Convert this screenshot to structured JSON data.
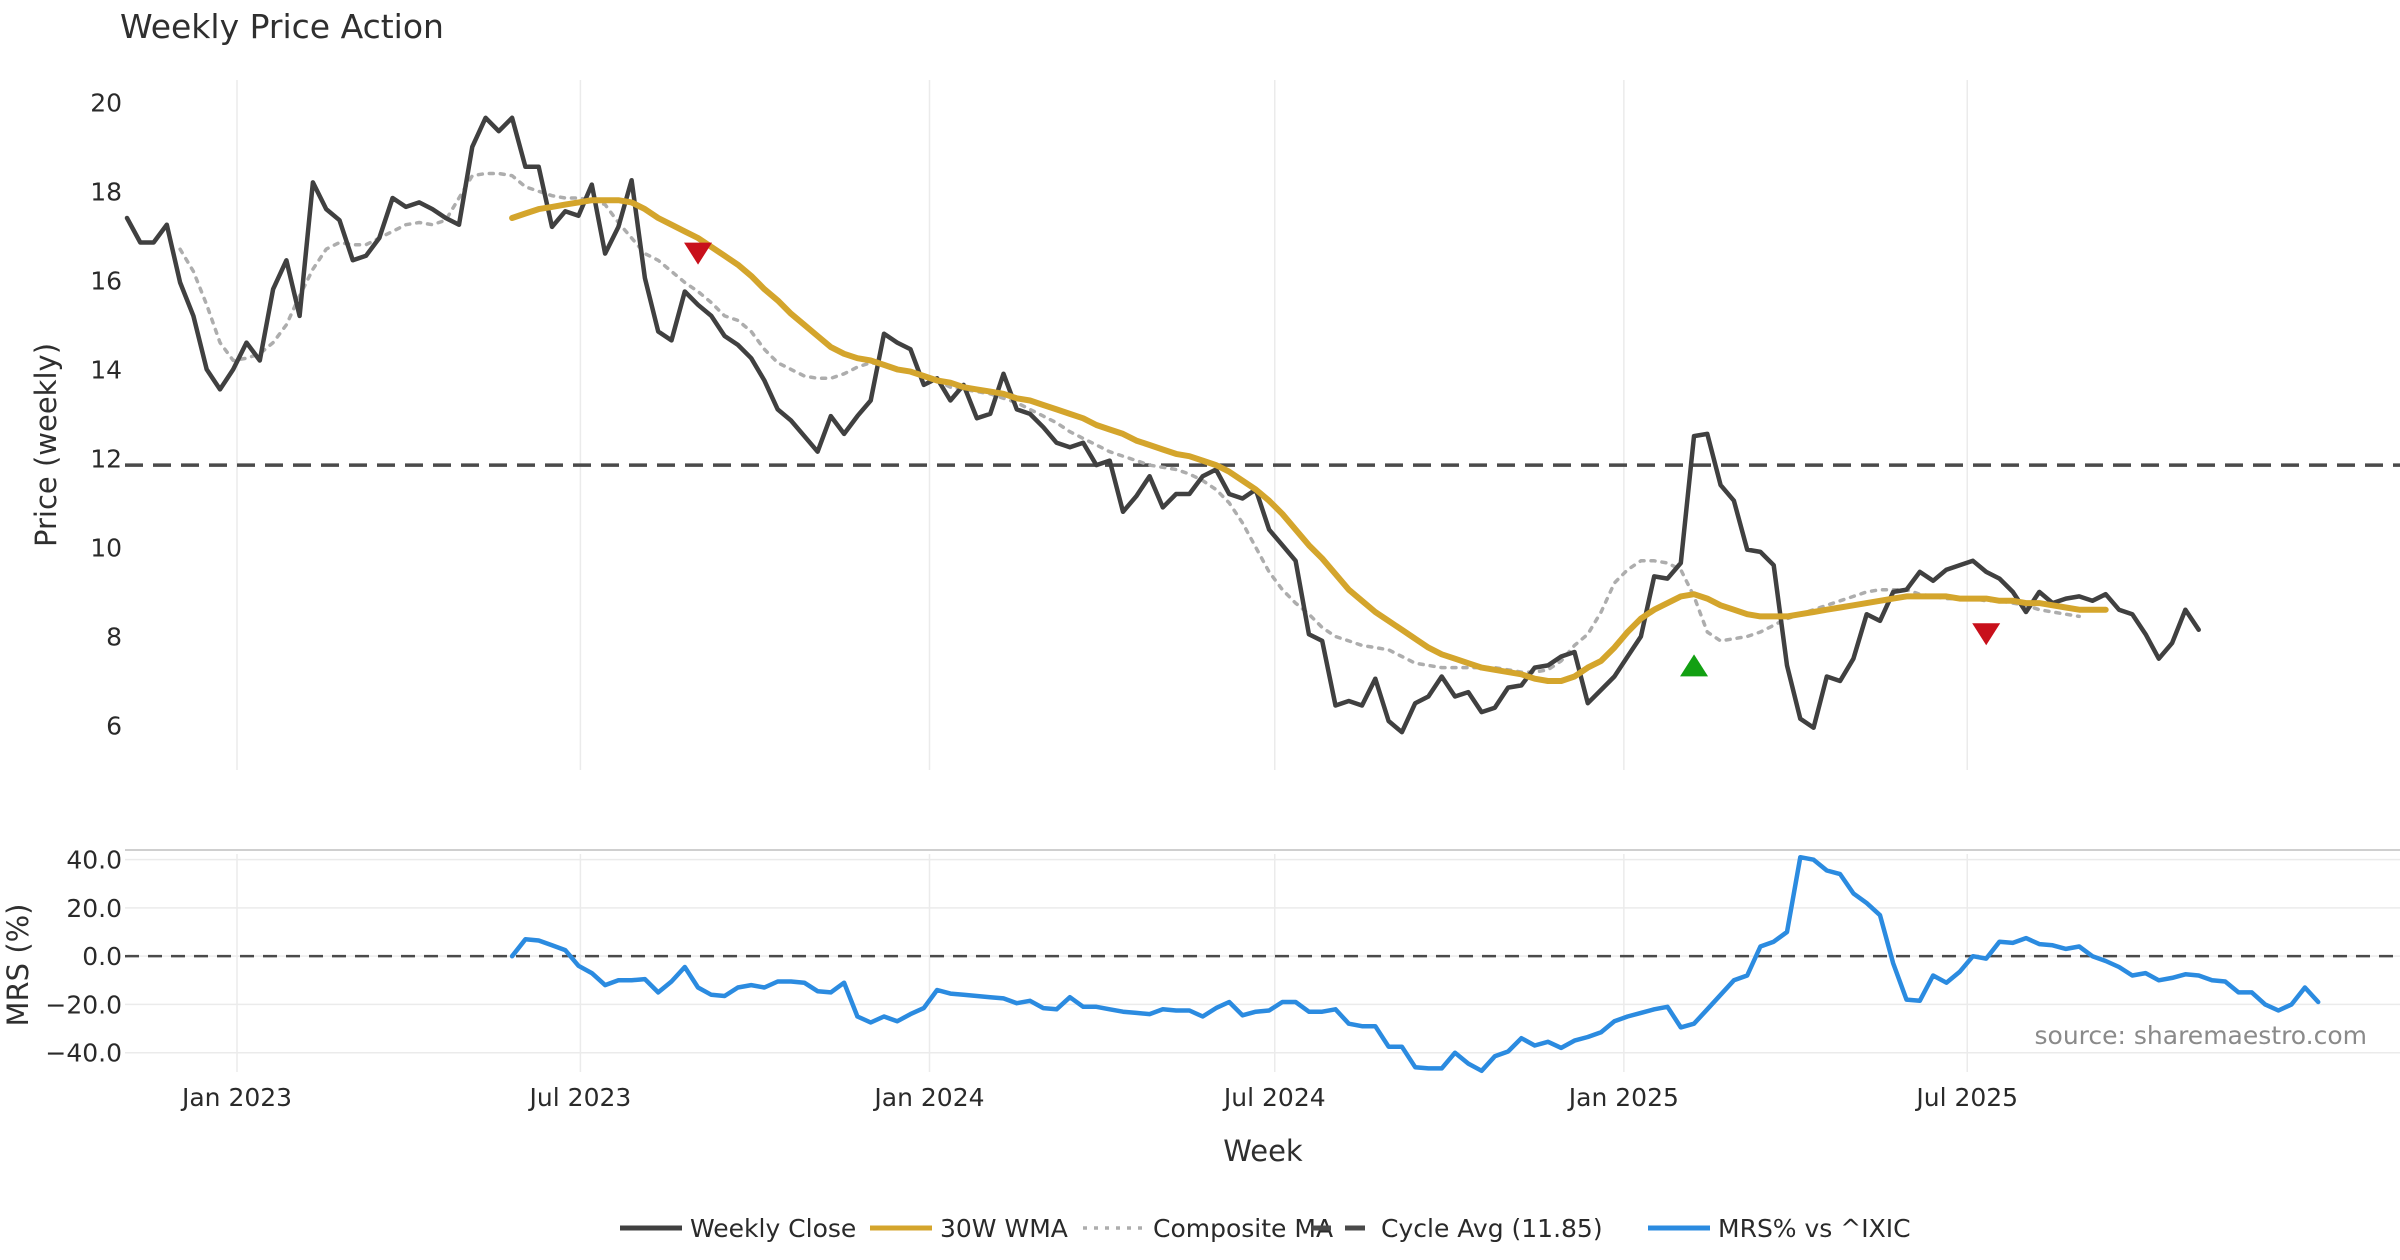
{
  "title": "Weekly Price Action",
  "source": "source: sharemaestro.com",
  "chart_data": [
    {
      "type": "line",
      "panel": "price",
      "ylabel": "Price (weekly)",
      "xlabel": "",
      "ylim": [
        5,
        20.5
      ],
      "yticks": [
        6,
        8,
        10,
        12,
        14,
        16,
        18,
        20
      ],
      "grid": true,
      "x_start": "2022-11-04",
      "x_step_days": 7,
      "series": [
        {
          "name": "Weekly Close",
          "color": "#404040",
          "style": "solid",
          "values": [
            17.4,
            16.85,
            16.85,
            17.25,
            15.95,
            15.2,
            14.0,
            13.55,
            14.0,
            14.6,
            14.2,
            15.8,
            16.45,
            15.2,
            18.2,
            17.6,
            17.35,
            16.45,
            16.55,
            16.95,
            17.85,
            17.65,
            17.75,
            17.6,
            17.4,
            17.25,
            19.0,
            19.65,
            19.35,
            19.65,
            18.55,
            18.55,
            17.2,
            17.55,
            17.45,
            18.15,
            16.6,
            17.2,
            18.25,
            16.05,
            14.85,
            14.65,
            15.75,
            15.45,
            15.2,
            14.75,
            14.55,
            14.25,
            13.75,
            13.1,
            12.85,
            12.5,
            12.15,
            12.95,
            12.55,
            12.95,
            13.3,
            14.8,
            14.6,
            14.45,
            13.65,
            13.8,
            13.3,
            13.65,
            12.9,
            13.0,
            13.9,
            13.1,
            13.0,
            12.7,
            12.35,
            12.25,
            12.35,
            11.85,
            11.95,
            10.8,
            11.15,
            11.6,
            10.9,
            11.2,
            11.2,
            11.6,
            11.75,
            11.2,
            11.1,
            11.3,
            10.4,
            10.05,
            9.7,
            8.05,
            7.9,
            6.45,
            6.55,
            6.45,
            7.05,
            6.1,
            5.85,
            6.5,
            6.65,
            7.1,
            6.65,
            6.75,
            6.3,
            6.4,
            6.85,
            6.9,
            7.3,
            7.35,
            7.55,
            7.65,
            6.5,
            6.8,
            7.1,
            7.55,
            8.0,
            9.35,
            9.3,
            9.65,
            12.5,
            12.55,
            11.4,
            11.05,
            9.95,
            9.9,
            9.6,
            7.35,
            6.15,
            5.95,
            7.1,
            7.0,
            7.5,
            8.5,
            8.35,
            9.0,
            9.05,
            9.45,
            9.25,
            9.5,
            9.6,
            9.7,
            9.45,
            9.3,
            9.0,
            8.55,
            9.0,
            8.75,
            8.85,
            8.9,
            8.8,
            8.95,
            8.6,
            8.5,
            8.05,
            7.5,
            7.85,
            8.6,
            8.15
          ]
        },
        {
          "name": "30W WMA",
          "color": "#d4a52c",
          "style": "solid",
          "start_index": 29,
          "values": [
            17.4,
            17.5,
            17.6,
            17.65,
            17.7,
            17.75,
            17.8,
            17.8,
            17.8,
            17.75,
            17.6,
            17.4,
            17.25,
            17.1,
            16.95,
            16.75,
            16.55,
            16.35,
            16.1,
            15.8,
            15.55,
            15.25,
            15.0,
            14.75,
            14.5,
            14.35,
            14.25,
            14.2,
            14.1,
            14.0,
            13.95,
            13.85,
            13.75,
            13.7,
            13.6,
            13.55,
            13.5,
            13.45,
            13.35,
            13.3,
            13.2,
            13.1,
            13.0,
            12.9,
            12.75,
            12.65,
            12.55,
            12.4,
            12.3,
            12.2,
            12.1,
            12.05,
            11.95,
            11.85,
            11.7,
            11.5,
            11.3,
            11.05,
            10.75,
            10.4,
            10.05,
            9.75,
            9.4,
            9.05,
            8.8,
            8.55,
            8.35,
            8.15,
            7.95,
            7.75,
            7.6,
            7.5,
            7.4,
            7.3,
            7.25,
            7.2,
            7.15,
            7.05,
            7.0,
            7.0,
            7.1,
            7.3,
            7.45,
            7.75,
            8.1,
            8.4,
            8.6,
            8.75,
            8.9,
            8.95,
            8.85,
            8.7,
            8.6,
            8.5,
            8.45,
            8.45,
            8.45,
            8.5,
            8.55,
            8.6,
            8.65,
            8.7,
            8.75,
            8.8,
            8.85,
            8.9,
            8.9,
            8.9,
            8.9,
            8.85,
            8.85,
            8.85,
            8.8,
            8.8,
            8.75,
            8.75,
            8.7,
            8.65,
            8.6,
            8.6,
            8.6
          ]
        },
        {
          "name": "Composite MA",
          "color": "#adadad",
          "style": "dotted",
          "start_index": 4,
          "values": [
            16.7,
            16.2,
            15.45,
            14.6,
            14.2,
            14.25,
            14.35,
            14.6,
            15.0,
            15.65,
            16.25,
            16.7,
            16.85,
            16.8,
            16.8,
            16.95,
            17.1,
            17.25,
            17.3,
            17.25,
            17.35,
            17.85,
            18.35,
            18.4,
            18.4,
            18.35,
            18.1,
            18.0,
            17.9,
            17.85,
            17.85,
            17.8,
            17.7,
            17.3,
            16.95,
            16.6,
            16.45,
            16.2,
            15.95,
            15.75,
            15.5,
            15.2,
            15.1,
            14.85,
            14.45,
            14.15,
            14.0,
            13.85,
            13.8,
            13.8,
            13.9,
            14.05,
            14.15,
            14.1,
            14.0,
            13.95,
            13.85,
            13.75,
            13.6,
            13.55,
            13.5,
            13.45,
            13.35,
            13.25,
            13.1,
            12.95,
            12.8,
            12.6,
            12.45,
            12.3,
            12.15,
            12.05,
            11.95,
            11.85,
            11.8,
            11.75,
            11.65,
            11.5,
            11.3,
            11.0,
            10.55,
            10.0,
            9.45,
            9.05,
            8.75,
            8.5,
            8.2,
            8.0,
            7.9,
            7.8,
            7.75,
            7.7,
            7.55,
            7.4,
            7.35,
            7.3,
            7.3,
            7.3,
            7.3,
            7.3,
            7.25,
            7.2,
            7.2,
            7.25,
            7.45,
            7.8,
            8.05,
            8.55,
            9.2,
            9.5,
            9.7,
            9.7,
            9.65,
            9.5,
            8.9,
            8.1,
            7.9,
            7.95,
            8.0,
            8.1,
            8.25,
            8.4,
            8.5,
            8.6,
            8.7,
            8.8,
            8.9,
            9.0,
            9.05,
            9.05,
            9.05,
            8.95,
            8.9,
            8.85,
            8.85,
            8.85,
            8.8,
            8.8,
            8.75,
            8.7,
            8.6,
            8.55,
            8.5,
            8.45
          ]
        },
        {
          "name": "Cycle Avg (11.85)",
          "color": "#4a4a4a",
          "style": "dashed",
          "constant": 11.85
        }
      ],
      "markers": [
        {
          "kind": "down",
          "color": "#c8101b",
          "index": 43,
          "value": 16.6
        },
        {
          "kind": "up",
          "color": "#12a012",
          "index": 118,
          "value": 7.35
        },
        {
          "kind": "down",
          "color": "#c8101b",
          "index": 140,
          "value": 8.05
        }
      ]
    },
    {
      "type": "line",
      "panel": "mrs",
      "ylabel": "MRS (%)",
      "xlabel": "Week",
      "ylim": [
        -48,
        44
      ],
      "yticks": [
        40.0,
        20.0,
        0.0,
        -20.0,
        -40.0
      ],
      "ytick_labels": [
        "40.0",
        "20.0",
        "0.0",
        "−20.0",
        "−40.0"
      ],
      "xtick_labels": [
        "Jan 2023",
        "Jul 2023",
        "Jan 2024",
        "Jul 2024",
        "Jan 2025",
        "Jul 2025"
      ],
      "xtick_dates": [
        "2023-01-01",
        "2023-07-01",
        "2024-01-01",
        "2024-07-01",
        "2025-01-01",
        "2025-07-01"
      ],
      "grid": true,
      "series": [
        {
          "name": "MRS% vs ^IXIC",
          "color": "#2b8be0",
          "style": "solid",
          "start_index": 29,
          "values": [
            0,
            7,
            6.5,
            4.5,
            2.5,
            -4,
            -7,
            -12,
            -10,
            -10,
            -9.5,
            -15,
            -10.5,
            -4.5,
            -13,
            -16,
            -16.5,
            -13,
            -12,
            -13,
            -10.5,
            -10.5,
            -11,
            -14.5,
            -15,
            -11,
            -25,
            -27.5,
            -25,
            -27,
            -24,
            -21.5,
            -14,
            -15.5,
            -16,
            -16.5,
            -17,
            -17.5,
            -19.5,
            -18.5,
            -21.5,
            -22,
            -17,
            -21,
            -21,
            -22,
            -23,
            -23.5,
            -24,
            -22,
            -22.5,
            -22.5,
            -25,
            -21.5,
            -19,
            -24.5,
            -23,
            -22.5,
            -19,
            -19,
            -23,
            -23,
            -22,
            -28,
            -29,
            -29,
            -37.5,
            -37.5,
            -46,
            -46.5,
            -46.5,
            -40,
            -44.5,
            -47.5,
            -41.5,
            -39.5,
            -34,
            -37,
            -35.5,
            -38,
            -35,
            -33.5,
            -31.5,
            -27,
            -25,
            -23.5,
            -22,
            -21,
            -29.5,
            -28,
            -22,
            -16,
            -10,
            -8,
            4,
            6,
            10,
            41,
            40,
            35.5,
            34,
            26,
            22,
            17,
            -3,
            -18,
            -18.5,
            -8,
            -11,
            -6.5,
            0,
            -1,
            6,
            5.5,
            7.5,
            5,
            4.5,
            3,
            4,
            0,
            -2,
            -4.5,
            -8,
            -7,
            -10,
            -9,
            -7.5,
            -8,
            -10,
            -10.5,
            -15,
            -15,
            -20,
            -22.5,
            -20,
            -13,
            -19
          ]
        }
      ],
      "reference_line": {
        "value": 0,
        "style": "dashed",
        "color": "#4a4a4a"
      }
    }
  ],
  "legend": {
    "placement": "bottom-center",
    "items": [
      {
        "label": "Weekly Close",
        "color": "#404040",
        "style": "solid"
      },
      {
        "label": "30W WMA",
        "color": "#d4a52c",
        "style": "solid"
      },
      {
        "label": "Composite MA",
        "color": "#adadad",
        "style": "dotted"
      },
      {
        "label": "Cycle Avg (11.85)",
        "color": "#4a4a4a",
        "style": "dashed"
      },
      {
        "label": "MRS% vs ^IXIC",
        "color": "#2b8be0",
        "style": "solid"
      }
    ]
  }
}
